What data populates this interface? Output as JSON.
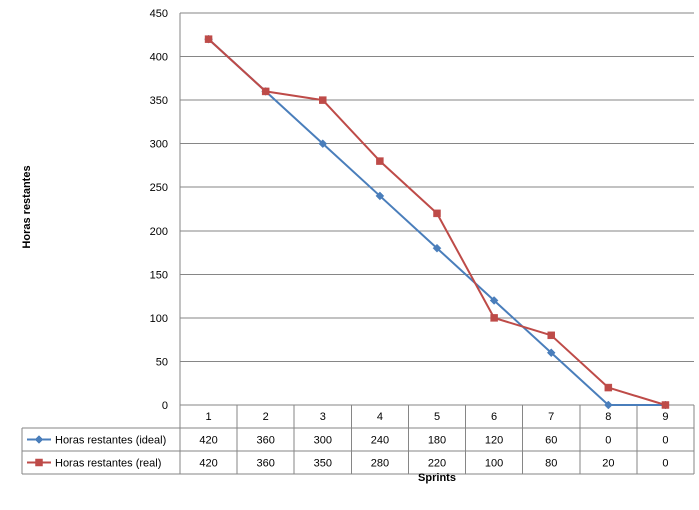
{
  "chart_data": {
    "type": "line",
    "x": [
      1,
      2,
      3,
      4,
      5,
      6,
      7,
      8,
      9
    ],
    "series": [
      {
        "name": "Horas restantes (ideal)",
        "values": [
          420,
          360,
          300,
          240,
          180,
          120,
          60,
          0,
          0
        ],
        "color": "#4a7ebb",
        "marker": "diamond"
      },
      {
        "name": "Horas restantes (real)",
        "values": [
          420,
          360,
          350,
          280,
          220,
          100,
          80,
          20,
          0
        ],
        "color": "#be4b48",
        "marker": "square"
      }
    ],
    "xlabel": "Sprints",
    "ylabel": "Horas restantes",
    "ylim": [
      0,
      450
    ],
    "yticks": [
      0,
      50,
      100,
      150,
      200,
      250,
      300,
      350,
      400,
      450
    ],
    "grid": true,
    "legend": "data-table"
  }
}
